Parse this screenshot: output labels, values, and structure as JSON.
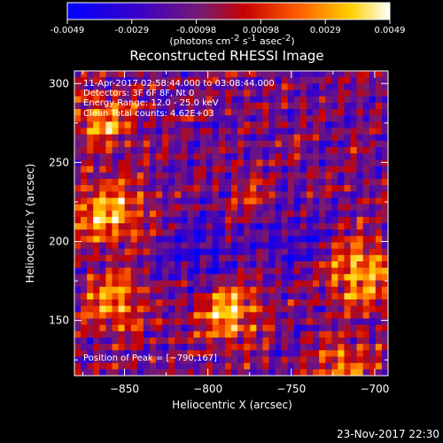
{
  "chart_data": {
    "type": "heatmap",
    "title": "Reconstructed RHESSI Image",
    "colorbar": {
      "ticks": [
        "-0.0049",
        "-0.0029",
        "-0.00098",
        "0.00098",
        "0.0029",
        "0.0049"
      ],
      "range": [
        -0.0049,
        0.0049
      ],
      "unit_line1": "(photons cm",
      "unit_exp1": "-2",
      "unit_line2": " s",
      "unit_exp2": "-1",
      "unit_line3": " asec",
      "unit_exp3": "-2",
      "unit_close": ")"
    },
    "xlabel": "Heliocentric X (arcsec)",
    "ylabel": "Heliocentric Y (arcsec)",
    "xlim": [
      -880,
      -692
    ],
    "ylim": [
      115,
      308
    ],
    "xticks": [
      -850,
      -800,
      -750,
      -700
    ],
    "yticks": [
      150,
      200,
      250,
      300
    ],
    "xtick_labels": [
      "−850",
      "−800",
      "−750",
      "−700"
    ],
    "ytick_labels": [
      "150",
      "200",
      "250",
      "300"
    ],
    "annotations": {
      "time": "11-Apr-2017 02:58:44.000 to 03:08:44.000",
      "detectors": "Detectors: 3F 6F 8F, Nt 0",
      "energy": "Energy Range: 12.0 - 25.0 keV",
      "clean": "Clean    Total counts: 4.62E+03",
      "peak": "Position of Peak = [−790,167]"
    },
    "peak": {
      "x": -790,
      "y": 167
    }
  },
  "footer": {
    "date": "23-Nov-2017 22:30"
  }
}
